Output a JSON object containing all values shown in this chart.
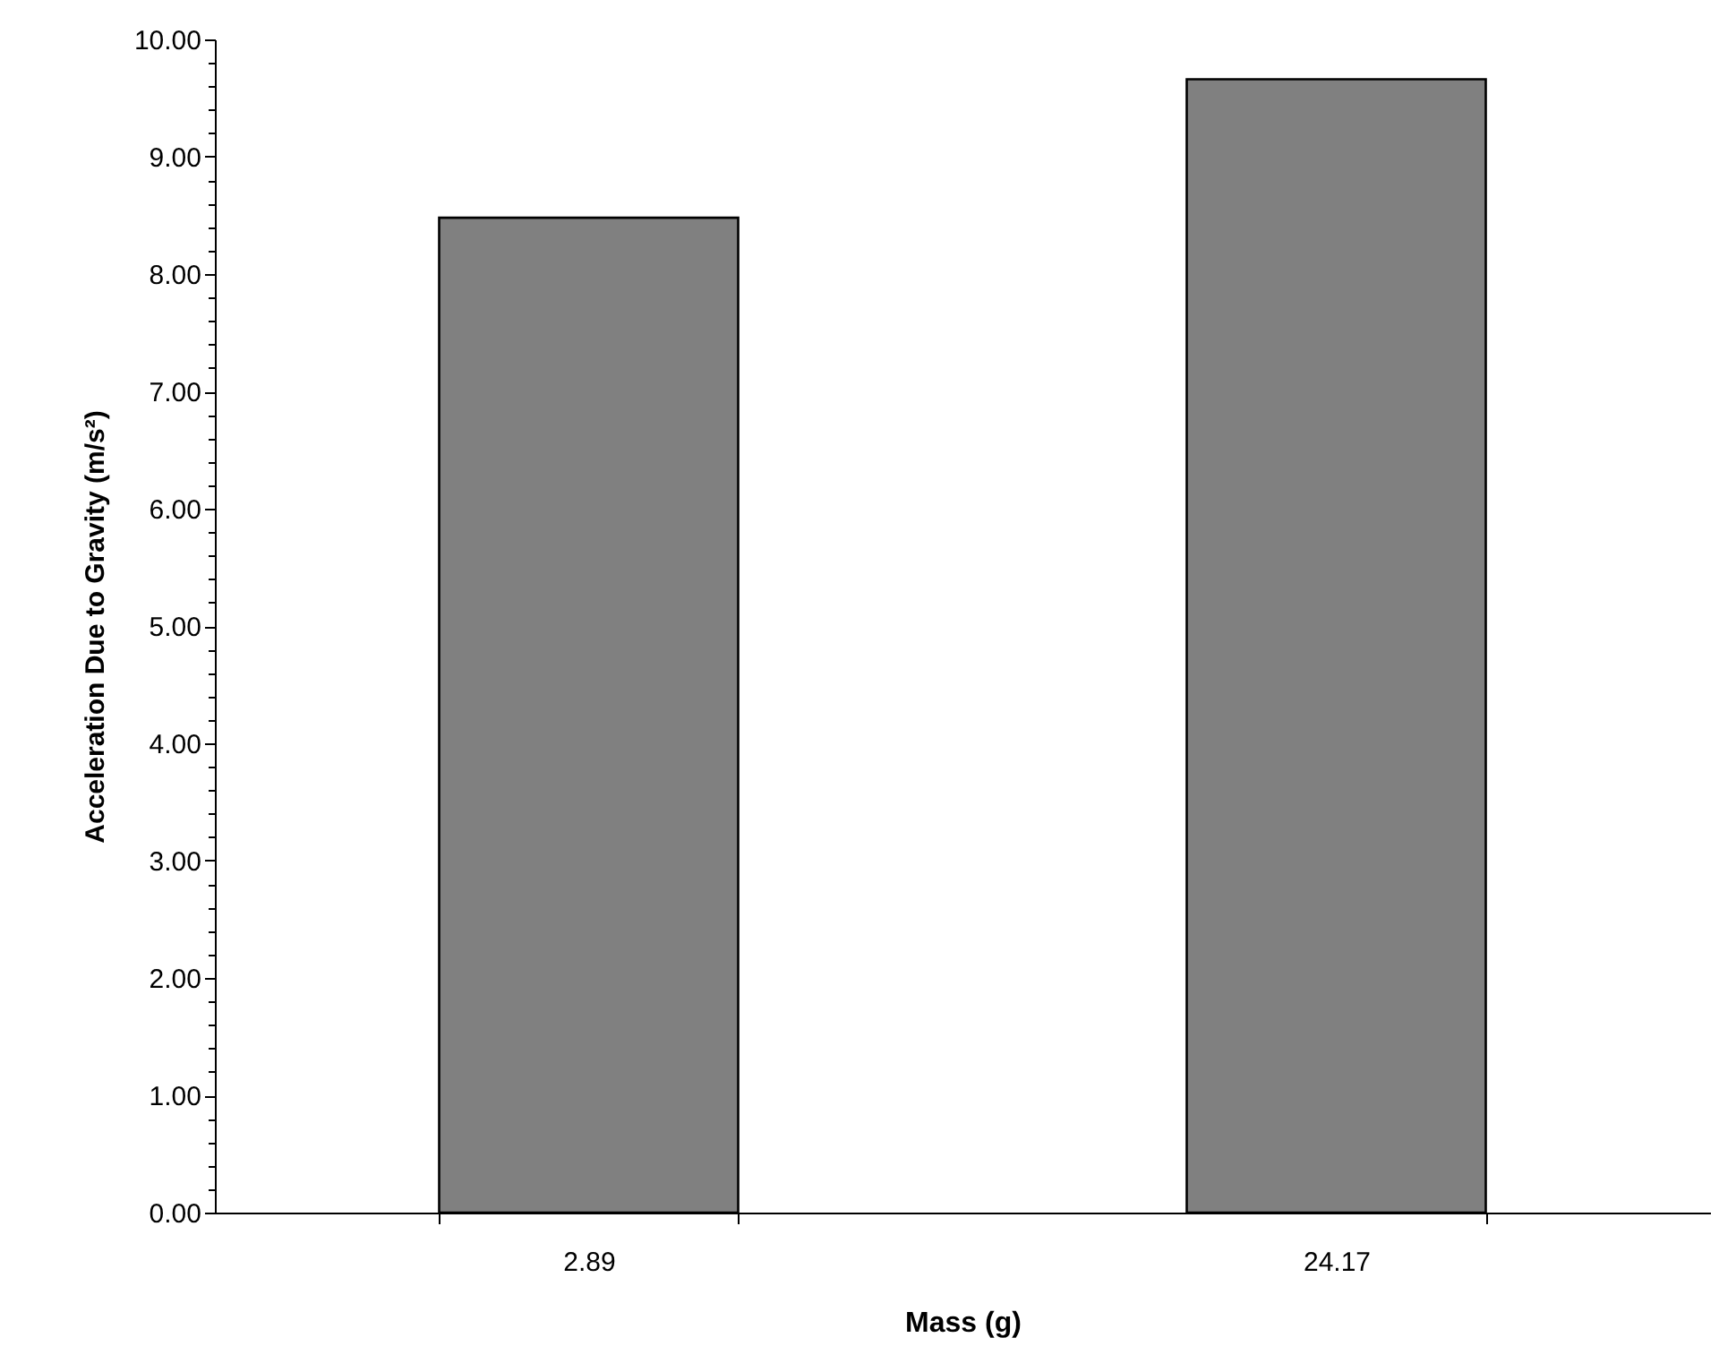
{
  "chart_data": {
    "type": "bar",
    "xlabel": "Mass (g)",
    "ylabel": "Acceleration Due to Gravity (m/s²)",
    "categories": [
      "2.89",
      "24.17"
    ],
    "values": [
      8.48,
      9.66
    ],
    "color": "#808080",
    "ylim": [
      0,
      10
    ],
    "yticks": [
      {
        "value": 0,
        "label": "0.00"
      },
      {
        "value": 0.2,
        "label": null
      },
      {
        "value": 0.4,
        "label": null
      },
      {
        "value": 0.6,
        "label": null
      },
      {
        "value": 0.8,
        "label": null
      },
      {
        "value": 1,
        "label": "1.00"
      },
      {
        "value": 1.2,
        "label": null
      },
      {
        "value": 1.4,
        "label": null
      },
      {
        "value": 1.6,
        "label": null
      },
      {
        "value": 1.8,
        "label": null
      },
      {
        "value": 2,
        "label": "2.00"
      },
      {
        "value": 2.2,
        "label": null
      },
      {
        "value": 2.4,
        "label": null
      },
      {
        "value": 2.6,
        "label": null
      },
      {
        "value": 2.8,
        "label": null
      },
      {
        "value": 3,
        "label": "3.00"
      },
      {
        "value": 3.2,
        "label": null
      },
      {
        "value": 3.4,
        "label": null
      },
      {
        "value": 3.6,
        "label": null
      },
      {
        "value": 3.8,
        "label": null
      },
      {
        "value": 4,
        "label": "4.00"
      },
      {
        "value": 4.2,
        "label": null
      },
      {
        "value": 4.4,
        "label": null
      },
      {
        "value": 4.6,
        "label": null
      },
      {
        "value": 4.8,
        "label": null
      },
      {
        "value": 5,
        "label": "5.00"
      },
      {
        "value": 5.2,
        "label": null
      },
      {
        "value": 5.4,
        "label": null
      },
      {
        "value": 5.6,
        "label": null
      },
      {
        "value": 5.8,
        "label": null
      },
      {
        "value": 6,
        "label": "6.00"
      },
      {
        "value": 6.2,
        "label": null
      },
      {
        "value": 6.4,
        "label": null
      },
      {
        "value": 6.6,
        "label": null
      },
      {
        "value": 6.8,
        "label": null
      },
      {
        "value": 7,
        "label": "7.00"
      },
      {
        "value": 7.2,
        "label": null
      },
      {
        "value": 7.4,
        "label": null
      },
      {
        "value": 7.6,
        "label": null
      },
      {
        "value": 7.8,
        "label": null
      },
      {
        "value": 8,
        "label": "8.00"
      },
      {
        "value": 8.2,
        "label": null
      },
      {
        "value": 8.4,
        "label": null
      },
      {
        "value": 8.6,
        "label": null
      },
      {
        "value": 8.8,
        "label": null
      },
      {
        "value": 9,
        "label": "9.00"
      },
      {
        "value": 9.2,
        "label": null
      },
      {
        "value": 9.4,
        "label": null
      },
      {
        "value": 9.6,
        "label": null
      },
      {
        "value": 9.8,
        "label": null
      },
      {
        "value": 10,
        "label": "10.00"
      }
    ],
    "grid": false
  }
}
